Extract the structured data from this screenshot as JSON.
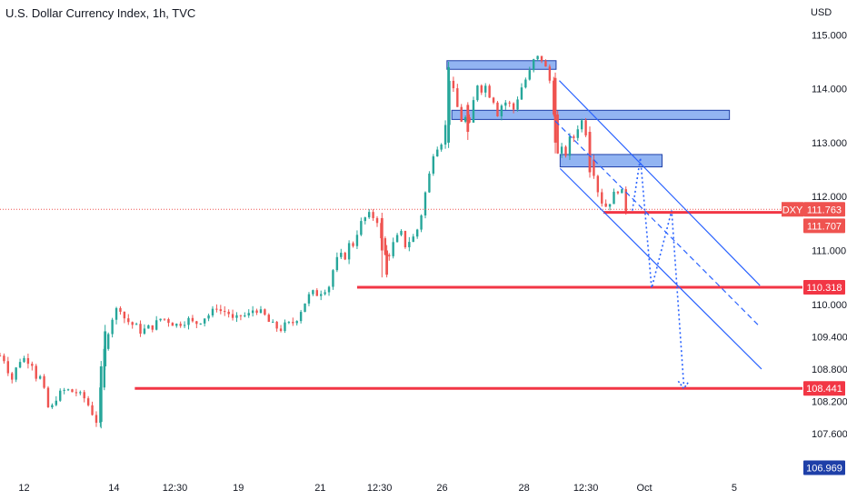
{
  "header": {
    "title": "U.S. Dollar Currency Index, 1h, TVC"
  },
  "chart_data": {
    "type": "candlestick",
    "title": "U.S. Dollar Currency Index, 1h, TVC",
    "y_unit": "USD",
    "ylim": [
      106.969,
      115.3
    ],
    "grid": false,
    "y_ticks": [
      "115.000",
      "114.000",
      "113.000",
      "112.000",
      "111.000",
      "110.000",
      "109.400",
      "108.800",
      "108.200",
      "107.600"
    ],
    "x_ticks": [
      "12",
      "14",
      "12:30",
      "19",
      "21",
      "12:30",
      "26",
      "28",
      "12:30",
      "Oct",
      "5"
    ],
    "x_range": [
      0,
      100
    ],
    "x_tick_positions": [
      3.0,
      14.2,
      21.8,
      29.7,
      39.9,
      47.3,
      55.1,
      65.3,
      73.0,
      80.3,
      91.5
    ],
    "symbol_badge": "DXY",
    "last_price": "111.763",
    "last_price_value": 111.763,
    "ref_price": "111.707",
    "ref_price_value": 111.707,
    "bottom_price": "106.969",
    "bottom_price_value": 106.969,
    "support_levels": [
      {
        "label": "110.318",
        "value": 110.318,
        "x_start": 44.5
      },
      {
        "label": "108.441",
        "value": 108.441,
        "x_start": 16.8
      }
    ],
    "resistance_line": {
      "value": 111.707,
      "x_start": 75.2
    },
    "zones": [
      {
        "x0": 55.7,
        "x1": 69.3,
        "y_low": 114.36,
        "y_high": 114.52
      },
      {
        "x0": 56.3,
        "x1": 90.9,
        "y_low": 113.43,
        "y_high": 113.6
      },
      {
        "x0": 69.8,
        "x1": 82.5,
        "y_low": 112.55,
        "y_high": 112.78
      }
    ],
    "channel_lines": [
      {
        "from": [
          69.7,
          114.15
        ],
        "to": [
          94.7,
          110.35
        ],
        "dashed": false
      },
      {
        "from": [
          69.8,
          112.52
        ],
        "to": [
          94.9,
          108.8
        ],
        "dashed": false
      },
      {
        "from": [
          69.2,
          113.4
        ],
        "to": [
          94.6,
          109.6
        ],
        "dashed": true
      }
    ],
    "projection_path": [
      [
        78.8,
        111.74
      ],
      [
        79.8,
        112.72
      ],
      [
        81.2,
        110.3
      ],
      [
        83.7,
        111.74
      ],
      [
        85.2,
        108.52
      ]
    ],
    "projection_arrow_tip": [
      85.2,
      108.44
    ],
    "accent_colors": {
      "up": "#26a69a",
      "down": "#ef5350",
      "level": "#f23645",
      "zone_fill": "#7fa7f0",
      "zone_stroke": "#1e3fa8",
      "channel": "#2962ff",
      "axis_label": "#1e3fa8"
    },
    "price_path": [
      [
        0.0,
        109.05
      ],
      [
        0.8,
        108.95
      ],
      [
        1.3,
        108.55
      ],
      [
        1.8,
        108.72
      ],
      [
        2.4,
        108.97
      ],
      [
        3.2,
        109.0
      ],
      [
        4.0,
        108.92
      ],
      [
        4.6,
        108.62
      ],
      [
        5.2,
        108.65
      ],
      [
        5.8,
        108.1
      ],
      [
        6.4,
        108.05
      ],
      [
        7.0,
        108.28
      ],
      [
        7.6,
        108.35
      ],
      [
        8.2,
        108.42
      ],
      [
        8.8,
        108.38
      ],
      [
        9.4,
        108.38
      ],
      [
        10.0,
        108.3
      ],
      [
        10.6,
        108.25
      ],
      [
        11.3,
        108.05
      ],
      [
        11.8,
        107.9
      ],
      [
        12.3,
        107.75
      ],
      [
        12.6,
        108.7
      ],
      [
        13.2,
        109.35
      ],
      [
        13.8,
        109.7
      ],
      [
        14.3,
        109.85
      ],
      [
        14.9,
        109.98
      ],
      [
        15.5,
        109.75
      ],
      [
        16.2,
        109.65
      ],
      [
        16.8,
        109.6
      ],
      [
        17.6,
        109.5
      ],
      [
        18.4,
        109.55
      ],
      [
        19.3,
        109.62
      ],
      [
        20.1,
        109.75
      ],
      [
        21.0,
        109.7
      ],
      [
        22.0,
        109.62
      ],
      [
        22.7,
        109.68
      ],
      [
        23.4,
        109.72
      ],
      [
        24.2,
        109.63
      ],
      [
        24.9,
        109.7
      ],
      [
        25.6,
        109.78
      ],
      [
        26.4,
        109.83
      ],
      [
        27.0,
        109.97
      ],
      [
        27.7,
        109.84
      ],
      [
        28.3,
        109.9
      ],
      [
        28.9,
        109.7
      ],
      [
        29.5,
        109.72
      ],
      [
        30.1,
        109.82
      ],
      [
        30.8,
        109.76
      ],
      [
        31.3,
        109.86
      ],
      [
        31.8,
        109.95
      ],
      [
        32.5,
        109.83
      ],
      [
        33.0,
        109.78
      ],
      [
        33.6,
        109.65
      ],
      [
        34.2,
        109.58
      ],
      [
        35.0,
        109.55
      ],
      [
        35.5,
        109.6
      ],
      [
        36.2,
        109.63
      ],
      [
        36.8,
        109.7
      ],
      [
        37.5,
        109.9
      ],
      [
        38.2,
        110.1
      ],
      [
        38.8,
        110.2
      ],
      [
        39.5,
        110.2
      ],
      [
        40.3,
        110.28
      ],
      [
        41.0,
        110.35
      ],
      [
        41.7,
        110.75
      ],
      [
        42.3,
        110.88
      ],
      [
        43.0,
        110.9
      ],
      [
        43.5,
        111.1
      ],
      [
        44.1,
        111.12
      ],
      [
        44.6,
        111.4
      ],
      [
        45.2,
        111.55
      ],
      [
        45.8,
        111.65
      ],
      [
        46.4,
        111.62
      ],
      [
        46.9,
        111.65
      ],
      [
        47.4,
        111.25
      ],
      [
        47.8,
        111.0
      ],
      [
        48.2,
        110.8
      ],
      [
        48.6,
        111.0
      ],
      [
        49.3,
        111.2
      ],
      [
        50.0,
        111.3
      ],
      [
        50.5,
        111.1
      ],
      [
        51.1,
        111.2
      ],
      [
        51.6,
        111.25
      ],
      [
        52.3,
        111.5
      ],
      [
        52.8,
        111.95
      ],
      [
        53.4,
        112.3
      ],
      [
        53.8,
        112.7
      ],
      [
        54.2,
        112.95
      ],
      [
        54.6,
        112.95
      ],
      [
        55.1,
        113.05
      ],
      [
        55.5,
        113.3
      ],
      [
        55.9,
        114.25
      ],
      [
        56.3,
        114.05
      ],
      [
        56.8,
        113.75
      ],
      [
        57.3,
        113.5
      ],
      [
        57.8,
        113.3
      ],
      [
        58.2,
        113.6
      ],
      [
        58.6,
        113.2
      ],
      [
        59.1,
        113.9
      ],
      [
        59.6,
        114.15
      ],
      [
        60.0,
        114.0
      ],
      [
        60.5,
        114.05
      ],
      [
        61.0,
        113.9
      ],
      [
        61.5,
        113.8
      ],
      [
        62.0,
        113.55
      ],
      [
        62.5,
        113.7
      ],
      [
        63.0,
        113.75
      ],
      [
        63.5,
        113.7
      ],
      [
        64.0,
        113.62
      ],
      [
        64.4,
        113.8
      ],
      [
        64.9,
        114.0
      ],
      [
        65.4,
        114.15
      ],
      [
        65.9,
        114.25
      ],
      [
        66.4,
        114.5
      ],
      [
        66.9,
        114.55
      ],
      [
        67.3,
        114.62
      ],
      [
        67.8,
        114.45
      ],
      [
        68.2,
        114.3
      ],
      [
        68.6,
        114.1
      ],
      [
        69.0,
        113.6
      ],
      [
        69.3,
        113.0
      ],
      [
        69.6,
        112.65
      ],
      [
        70.0,
        112.85
      ],
      [
        70.5,
        112.8
      ],
      [
        71.0,
        113.05
      ],
      [
        71.5,
        113.1
      ],
      [
        72.0,
        113.3
      ],
      [
        72.5,
        113.4
      ],
      [
        73.0,
        113.2
      ],
      [
        73.4,
        112.8
      ],
      [
        73.9,
        112.55
      ],
      [
        74.3,
        112.2
      ],
      [
        74.8,
        112.0
      ],
      [
        75.3,
        111.78
      ],
      [
        75.8,
        111.9
      ],
      [
        76.3,
        111.95
      ],
      [
        76.8,
        112.15
      ],
      [
        77.4,
        112.12
      ],
      [
        77.7,
        111.93
      ],
      [
        78.0,
        111.763
      ]
    ],
    "big_candles": [
      {
        "x": 12.6,
        "open": 107.82,
        "close": 108.85,
        "high": 108.95,
        "low": 107.7
      },
      {
        "x": 13.1,
        "open": 108.85,
        "close": 109.5,
        "high": 109.62,
        "low": 108.78
      },
      {
        "x": 47.6,
        "open": 111.6,
        "close": 111.0,
        "high": 111.7,
        "low": 110.5
      },
      {
        "x": 48.2,
        "open": 111.0,
        "close": 110.55,
        "high": 111.1,
        "low": 110.5
      },
      {
        "x": 55.9,
        "open": 113.0,
        "close": 114.4,
        "high": 114.5,
        "low": 112.9
      },
      {
        "x": 58.3,
        "open": 113.7,
        "close": 113.2,
        "high": 113.75,
        "low": 113.05
      },
      {
        "x": 69.2,
        "open": 114.2,
        "close": 113.0,
        "high": 114.3,
        "low": 112.8
      },
      {
        "x": 73.5,
        "open": 113.2,
        "close": 112.45,
        "high": 113.3,
        "low": 112.35
      }
    ]
  }
}
